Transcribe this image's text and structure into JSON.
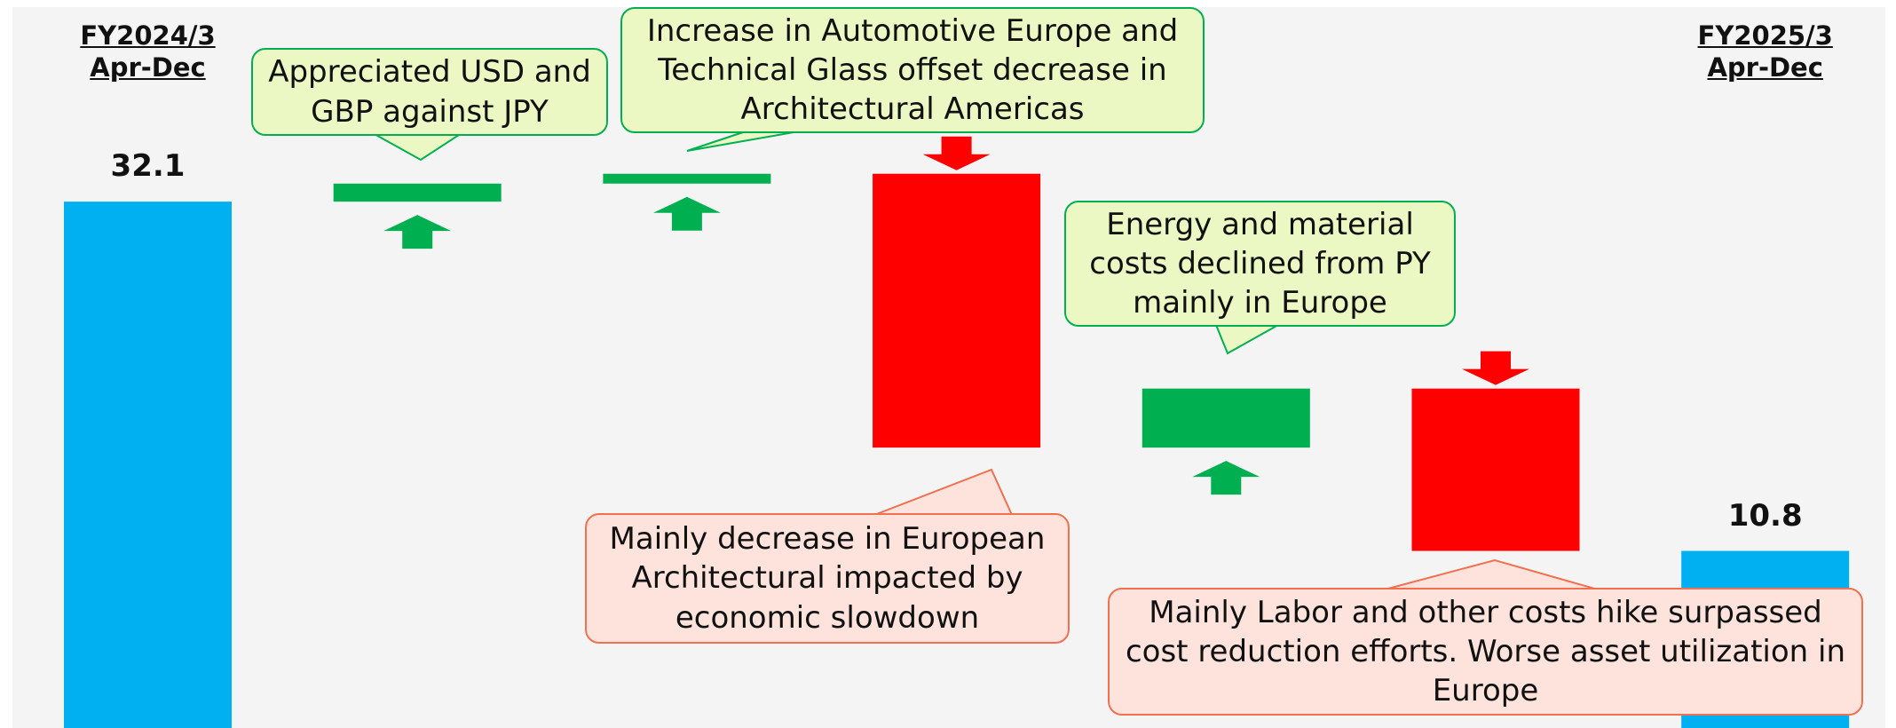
{
  "chart_data": {
    "type": "waterfall",
    "categories": [
      "FY2024/3 Apr-Dec",
      null,
      null,
      null,
      null,
      null,
      "FY2025/3 Apr-Dec"
    ],
    "measure": [
      "absolute",
      "relative",
      "relative",
      "relative",
      "relative",
      "relative",
      "total"
    ],
    "values": [
      32.1,
      1.1,
      0.6,
      -16.7,
      3.6,
      -9.9,
      10.8
    ],
    "colors": {
      "total": "#00B0F0",
      "increase": "#00B050",
      "decrease": "#FF0000"
    },
    "annotations": [
      {
        "text": "Appreciated USD and GBP against JPY",
        "fill": "#EBF8C4",
        "border": "#00B050"
      },
      {
        "text": "Increase in Automotive Europe and Technical Glass offset decrease in Architectural Americas",
        "fill": "#EBF8C4",
        "border": "#00B050"
      },
      {
        "text": "Mainly decrease in European Architectural impacted by economic slowdown",
        "fill": "#FDE3DB",
        "border": "#F07050"
      },
      {
        "text": "Energy and material costs declined from PY mainly in Europe",
        "fill": "#EBF8C4",
        "border": "#00B050"
      },
      {
        "text": "Mainly Labor and other costs hike surpassed cost reduction efforts. Worse asset utilization in Europe",
        "fill": "#FDE3DB",
        "border": "#F07050"
      }
    ]
  }
}
